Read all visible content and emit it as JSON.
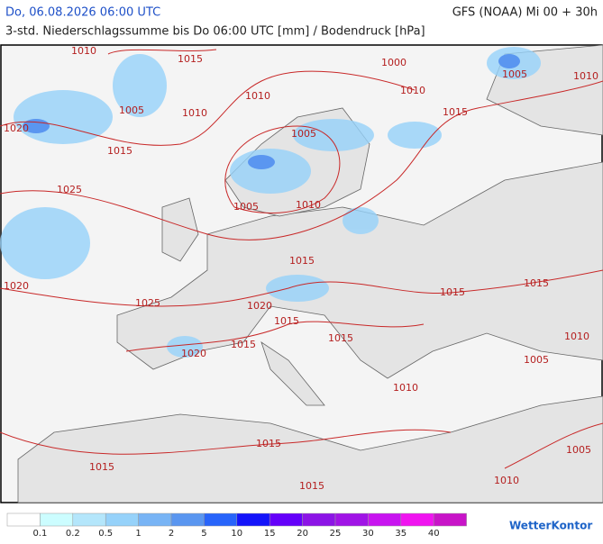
{
  "header": {
    "datetime": "Do, 06.08.2026 06:00 UTC",
    "model": "GFS (NOAA) Mi 00 + 30h",
    "subtitle": "3-std. Niederschlagssumme bis Do 06:00 UTC [mm] / Bodendruck [hPa]"
  },
  "isobar_labels": [
    1010,
    1015,
    1000,
    1005,
    1010,
    1010,
    1010,
    1005,
    1010,
    1015,
    1020,
    1005,
    1015,
    1025,
    1005,
    1010,
    1015,
    1020,
    1015,
    1015,
    1025,
    1020,
    1015,
    1015,
    1015,
    1020,
    1010,
    1005,
    1010,
    1015,
    1015,
    1005,
    1015,
    1010
  ],
  "legend": {
    "colors": [
      "#ffffff",
      "#ccfdff",
      "#b4e6fb",
      "#96d2fa",
      "#78b4f5",
      "#5a96f0",
      "#2864fa",
      "#1414fa",
      "#6400fa",
      "#8c14e6",
      "#a014e6",
      "#c814f0",
      "#f014f0",
      "#c814c8"
    ],
    "labels": [
      "0.1",
      "0.2",
      "0.5",
      "1",
      "2",
      "5",
      "10",
      "15",
      "20",
      "25",
      "30",
      "35",
      "40"
    ]
  },
  "logo": "WetterKontor"
}
